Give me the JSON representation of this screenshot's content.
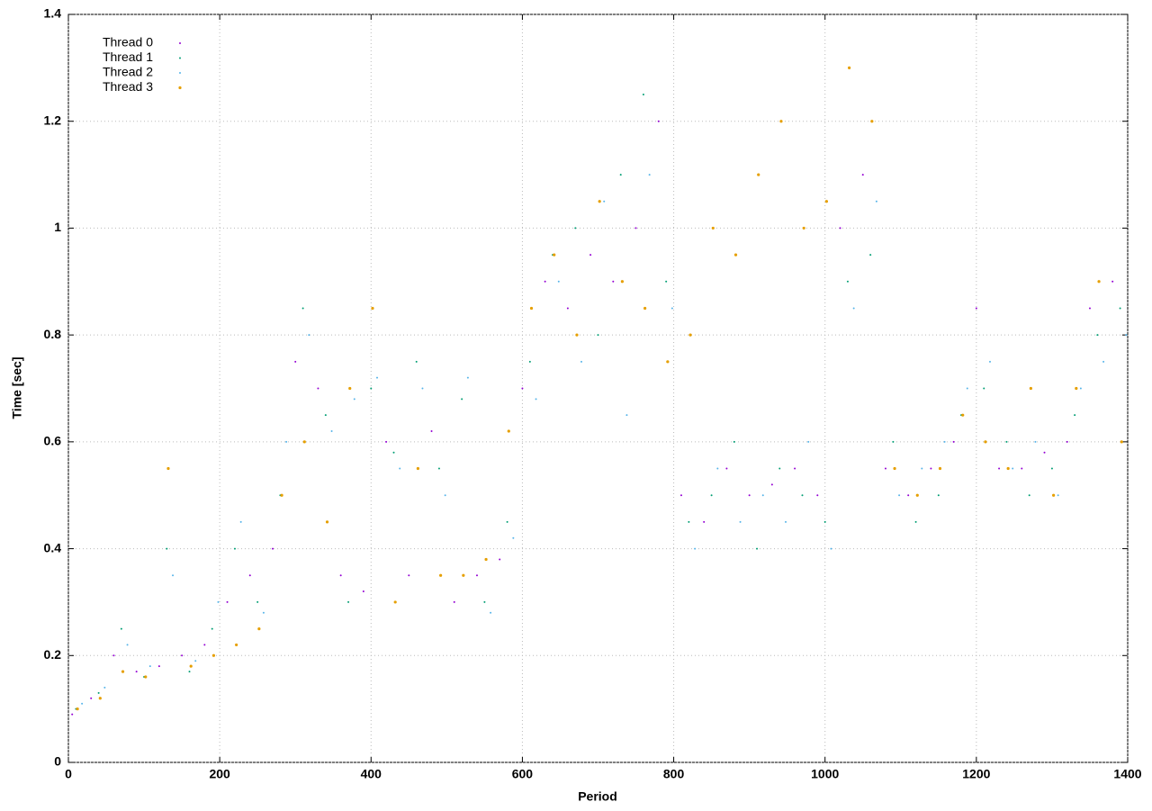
{
  "chart_data": {
    "type": "scatter",
    "xlabel": "Period",
    "ylabel": "Time [sec]",
    "xlim": [
      0,
      1400
    ],
    "xticks": [
      0,
      200,
      400,
      600,
      800,
      1000,
      1200,
      1400
    ],
    "ylim": [
      0,
      1.4
    ],
    "yticks": [
      0,
      0.2,
      0.4,
      0.6,
      0.8,
      1,
      1.2,
      1.4
    ],
    "grid": true,
    "legend": "top-left",
    "series": [
      {
        "name": "Thread 0",
        "color": "#9400d3",
        "x": [
          5,
          30,
          60,
          90,
          120,
          150,
          180,
          210,
          240,
          270,
          300,
          330,
          360,
          390,
          420,
          450,
          480,
          510,
          540,
          570,
          600,
          630,
          660,
          690,
          720,
          750,
          780,
          810,
          840,
          870,
          900,
          930,
          960,
          990,
          1020,
          1050,
          1080,
          1110,
          1140,
          1170,
          1200,
          1230,
          1260,
          1290,
          1320,
          1350,
          1380
        ],
        "values": [
          0.09,
          0.12,
          0.2,
          0.17,
          0.18,
          0.2,
          0.22,
          0.3,
          0.35,
          0.4,
          0.75,
          0.7,
          0.35,
          0.32,
          0.6,
          0.35,
          0.62,
          0.3,
          0.35,
          0.38,
          0.7,
          0.9,
          0.85,
          0.95,
          0.9,
          1.0,
          1.2,
          0.5,
          0.45,
          0.55,
          0.5,
          0.52,
          0.55,
          0.5,
          1.0,
          1.1,
          0.55,
          0.5,
          0.55,
          0.6,
          0.85,
          0.55,
          0.55,
          0.58,
          0.6,
          0.85,
          0.9
        ]
      },
      {
        "name": "Thread 1",
        "color": "#009e73",
        "x": [
          10,
          40,
          70,
          100,
          130,
          160,
          190,
          220,
          250,
          280,
          310,
          340,
          370,
          400,
          430,
          460,
          490,
          520,
          550,
          580,
          610,
          640,
          670,
          700,
          730,
          760,
          790,
          820,
          850,
          880,
          910,
          940,
          970,
          1000,
          1030,
          1060,
          1090,
          1120,
          1150,
          1180,
          1210,
          1240,
          1270,
          1300,
          1330,
          1360,
          1390
        ],
        "values": [
          0.1,
          0.13,
          0.25,
          0.16,
          0.4,
          0.17,
          0.25,
          0.4,
          0.3,
          0.5,
          0.85,
          0.65,
          0.3,
          0.7,
          0.58,
          0.75,
          0.55,
          0.68,
          0.3,
          0.45,
          0.75,
          0.95,
          1.0,
          0.8,
          1.1,
          1.25,
          0.9,
          0.45,
          0.5,
          0.6,
          0.4,
          0.55,
          0.5,
          0.45,
          0.9,
          0.95,
          0.6,
          0.45,
          0.5,
          0.65,
          0.7,
          0.6,
          0.5,
          0.55,
          0.65,
          0.8,
          0.85
        ]
      },
      {
        "name": "Thread 2",
        "color": "#56b4e9",
        "x": [
          18,
          48,
          78,
          108,
          138,
          168,
          198,
          228,
          258,
          288,
          318,
          348,
          378,
          408,
          438,
          468,
          498,
          528,
          558,
          588,
          618,
          648,
          678,
          708,
          738,
          768,
          798,
          828,
          858,
          888,
          918,
          948,
          978,
          1008,
          1038,
          1068,
          1098,
          1128,
          1158,
          1188,
          1218,
          1248,
          1278,
          1308,
          1338,
          1368,
          1398
        ],
        "values": [
          0.11,
          0.14,
          0.22,
          0.18,
          0.35,
          0.19,
          0.3,
          0.45,
          0.28,
          0.6,
          0.8,
          0.62,
          0.68,
          0.72,
          0.55,
          0.7,
          0.5,
          0.72,
          0.28,
          0.42,
          0.68,
          0.9,
          0.75,
          1.05,
          0.65,
          1.1,
          0.85,
          0.4,
          0.55,
          0.45,
          0.5,
          0.45,
          0.6,
          0.4,
          0.85,
          1.05,
          0.5,
          0.55,
          0.6,
          0.7,
          0.75,
          0.55,
          0.6,
          0.5,
          0.7,
          0.75,
          0.8
        ]
      },
      {
        "name": "Thread 3",
        "color": "#e69f00",
        "x": [
          12,
          42,
          72,
          102,
          132,
          162,
          192,
          222,
          252,
          282,
          312,
          342,
          372,
          402,
          432,
          462,
          492,
          522,
          552,
          582,
          612,
          642,
          672,
          702,
          732,
          762,
          792,
          822,
          852,
          882,
          912,
          942,
          972,
          1002,
          1032,
          1062,
          1092,
          1122,
          1152,
          1182,
          1212,
          1242,
          1272,
          1302,
          1332,
          1362,
          1392
        ],
        "values": [
          0.1,
          0.12,
          0.17,
          0.16,
          0.55,
          0.18,
          0.2,
          0.22,
          0.25,
          0.5,
          0.6,
          0.45,
          0.7,
          0.85,
          0.3,
          0.55,
          0.35,
          0.35,
          0.38,
          0.62,
          0.85,
          0.95,
          0.8,
          1.05,
          0.9,
          0.85,
          0.75,
          0.8,
          1.0,
          0.95,
          1.1,
          1.2,
          1.0,
          1.05,
          1.3,
          1.2,
          0.55,
          0.5,
          0.55,
          0.65,
          0.6,
          0.55,
          0.7,
          0.5,
          0.7,
          0.9,
          0.6
        ]
      }
    ]
  }
}
